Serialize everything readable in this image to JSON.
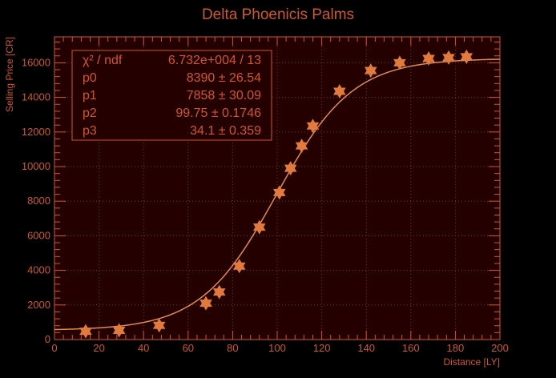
{
  "chart_data": {
    "type": "scatter",
    "title": "Delta Phoenicis Palms",
    "xlabel": "Distance [LY]",
    "ylabel": "Selling Price [CR]",
    "xlim": [
      0,
      200
    ],
    "ylim": [
      0,
      17500
    ],
    "x_ticks": [
      0,
      20,
      40,
      60,
      80,
      100,
      120,
      140,
      160,
      180,
      200
    ],
    "y_ticks": [
      0,
      2000,
      4000,
      6000,
      8000,
      10000,
      12000,
      14000,
      16000
    ],
    "grid": true,
    "colors": {
      "background": "#000000",
      "plot_background": "#240000",
      "text": "#d0562f",
      "grid": "#7a3518",
      "marker": "#e07a3e",
      "curve": "#e08a55"
    },
    "series": [
      {
        "marker": "star",
        "points": [
          {
            "x": 14,
            "y": 480
          },
          {
            "x": 29,
            "y": 530
          },
          {
            "x": 47,
            "y": 820
          },
          {
            "x": 68,
            "y": 2100
          },
          {
            "x": 74,
            "y": 2750
          },
          {
            "x": 83,
            "y": 4250
          },
          {
            "x": 92,
            "y": 6500
          },
          {
            "x": 101,
            "y": 8500
          },
          {
            "x": 106,
            "y": 9900
          },
          {
            "x": 111,
            "y": 11200
          },
          {
            "x": 116,
            "y": 12350
          },
          {
            "x": 128,
            "y": 14350
          },
          {
            "x": 142,
            "y": 15550
          },
          {
            "x": 155,
            "y": 16000
          },
          {
            "x": 168,
            "y": 16250
          },
          {
            "x": 177,
            "y": 16300
          },
          {
            "x": 185,
            "y": 16350
          }
        ]
      }
    ],
    "fit": {
      "function": "sigmoid",
      "x_range": [
        0,
        200
      ],
      "p0": 8390,
      "p1": 7858,
      "p2": 99.75,
      "p3": 34.1
    },
    "stats_box": {
      "position": "top-left",
      "rows": [
        {
          "label": "χ² / ndf",
          "value": "6.732e+004 / 13"
        },
        {
          "label": "p0",
          "value": "8390 ± 26.54"
        },
        {
          "label": "p1",
          "value": "7858 ± 30.09"
        },
        {
          "label": "p2",
          "value": "99.75 ± 0.1746"
        },
        {
          "label": "p3",
          "value": "34.1 ± 0.359"
        }
      ]
    }
  }
}
